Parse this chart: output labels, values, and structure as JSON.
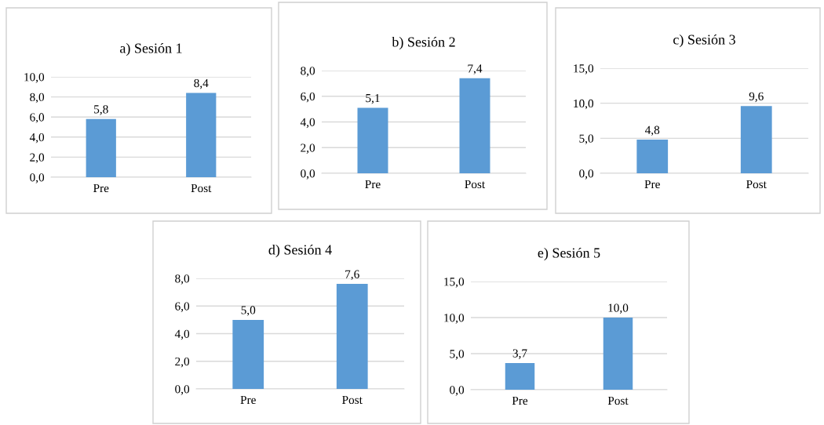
{
  "chart_data": [
    {
      "type": "bar",
      "title": "a) Sesión 1",
      "categories": [
        "Pre",
        "Post"
      ],
      "values": [
        5.8,
        8.4
      ],
      "color": "#5b9bd5",
      "value_labels": [
        "5,8",
        "8,4"
      ],
      "ylim": [
        0,
        10
      ],
      "yticks": [
        {
          "value": 0,
          "label": "0,0"
        },
        {
          "value": 2,
          "label": "2,0"
        },
        {
          "value": 4,
          "label": "4,0"
        },
        {
          "value": 6,
          "label": "6,0"
        },
        {
          "value": 8,
          "label": "8,0"
        },
        {
          "value": 10,
          "label": "10,0"
        }
      ],
      "grid": "y"
    },
    {
      "type": "bar",
      "title": "b) Sesión 2",
      "categories": [
        "Pre",
        "Post"
      ],
      "values": [
        5.1,
        7.4
      ],
      "color": "#5b9bd5",
      "value_labels": [
        "5,1",
        "7,4"
      ],
      "ylim": [
        0,
        8
      ],
      "yticks": [
        {
          "value": 0,
          "label": "0,0"
        },
        {
          "value": 2,
          "label": "2,0"
        },
        {
          "value": 4,
          "label": "4,0"
        },
        {
          "value": 6,
          "label": "6,0"
        },
        {
          "value": 8,
          "label": "8,0"
        }
      ],
      "grid": "y"
    },
    {
      "type": "bar",
      "title": "c) Sesión 3",
      "categories": [
        "Pre",
        "Post"
      ],
      "values": [
        4.8,
        9.6
      ],
      "color": "#5b9bd5",
      "value_labels": [
        "4,8",
        "9,6"
      ],
      "ylim": [
        0,
        15
      ],
      "yticks": [
        {
          "value": 0,
          "label": "0,0"
        },
        {
          "value": 5,
          "label": "5,0"
        },
        {
          "value": 10,
          "label": "10,0"
        },
        {
          "value": 15,
          "label": "15,0"
        }
      ],
      "grid": "y"
    },
    {
      "type": "bar",
      "title": "d) Sesión 4",
      "categories": [
        "Pre",
        "Post"
      ],
      "values": [
        5.0,
        7.6
      ],
      "color": "#5b9bd5",
      "value_labels": [
        "5,0",
        "7,6"
      ],
      "ylim": [
        0,
        8
      ],
      "yticks": [
        {
          "value": 0,
          "label": "0,0"
        },
        {
          "value": 2,
          "label": "2,0"
        },
        {
          "value": 4,
          "label": "4,0"
        },
        {
          "value": 6,
          "label": "6,0"
        },
        {
          "value": 8,
          "label": "8,0"
        }
      ],
      "grid": "y"
    },
    {
      "type": "bar",
      "title": "e) Sesión 5",
      "categories": [
        "Pre",
        "Post"
      ],
      "values": [
        3.7,
        10.0
      ],
      "color": "#5b9bd5",
      "value_labels": [
        "3,7",
        "10,0"
      ],
      "ylim": [
        0,
        15
      ],
      "yticks": [
        {
          "value": 0,
          "label": "0,0"
        },
        {
          "value": 5,
          "label": "5,0"
        },
        {
          "value": 10,
          "label": "10,0"
        },
        {
          "value": 15,
          "label": "15,0"
        }
      ],
      "grid": "y"
    }
  ]
}
